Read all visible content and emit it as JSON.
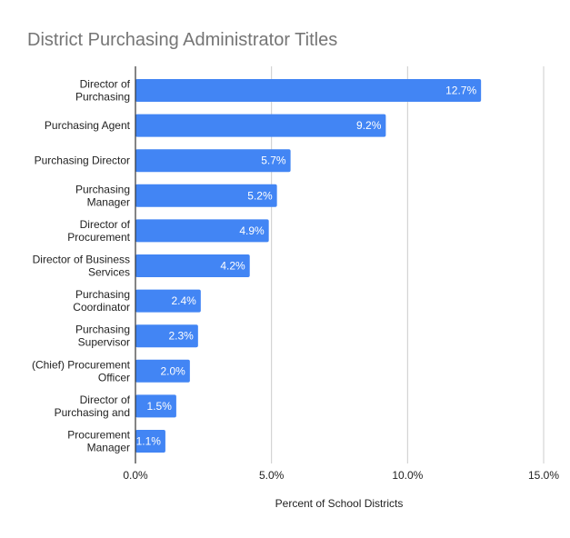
{
  "chart_data": {
    "type": "bar",
    "orientation": "horizontal",
    "title": "District Purchasing Administrator Titles",
    "xlabel": "Percent of School Districts",
    "ylabel": "",
    "categories": [
      [
        "Director of",
        "Purchasing"
      ],
      [
        "Purchasing Agent"
      ],
      [
        "Purchasing Director"
      ],
      [
        "Purchasing",
        "Manager"
      ],
      [
        "Director of",
        "Procurement"
      ],
      [
        "Director of Business",
        "Services"
      ],
      [
        "Purchasing",
        "Coordinator"
      ],
      [
        "Purchasing",
        "Supervisor"
      ],
      [
        "(Chief) Procurement",
        "Officer"
      ],
      [
        "Director of",
        "Purchasing and"
      ],
      [
        "Procurement",
        "Manager"
      ]
    ],
    "values": [
      12.7,
      9.2,
      5.7,
      5.2,
      4.9,
      4.2,
      2.4,
      2.3,
      2.0,
      1.5,
      1.1
    ],
    "data_labels": [
      "12.7%",
      "9.2%",
      "5.7%",
      "5.2%",
      "4.9%",
      "4.2%",
      "2.4%",
      "2.3%",
      "2.0%",
      "1.5%",
      "1.1%"
    ],
    "xlim": [
      0,
      15
    ],
    "xticks": [
      0,
      5,
      10,
      15
    ],
    "xtick_labels": [
      "0.0%",
      "5.0%",
      "10.0%",
      "15.0%"
    ],
    "grid": true,
    "legend": "none",
    "colors": {
      "bar": "#4285f4",
      "grid": "#cccccc",
      "axis": "#333333",
      "title": "#757575"
    }
  }
}
